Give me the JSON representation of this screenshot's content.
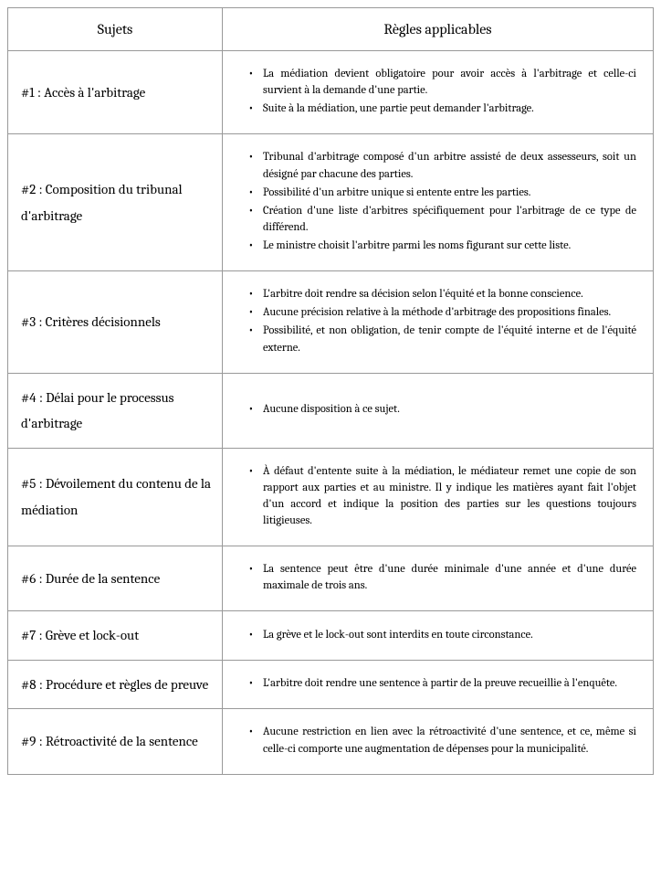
{
  "table": {
    "header": {
      "subject": "Sujets",
      "rules": "Règles applicables"
    },
    "rows": [
      {
        "subject": "#1 : Accès à l'arbitrage",
        "rules": [
          "La médiation devient obligatoire pour avoir accès à l'arbitrage et celle-ci survient à la demande d'une partie.",
          "Suite à la médiation, une partie peut demander l'arbitrage."
        ]
      },
      {
        "subject": "#2 : Composition du tribunal d'arbitrage",
        "rules": [
          "Tribunal d'arbitrage composé d'un arbitre assisté de deux assesseurs, soit un désigné par chacune des parties.",
          "Possibilité d'un arbitre unique si entente entre les parties.",
          "Création d'une liste d'arbitres spécifiquement pour l'arbitrage de ce type de différend.",
          "Le ministre choisit l'arbitre parmi les noms figurant sur cette liste."
        ]
      },
      {
        "subject": "#3 : Critères décisionnels",
        "rules": [
          "L'arbitre doit rendre sa décision selon l'équité et la bonne conscience.",
          "Aucune précision relative à la méthode d'arbitrage des propositions finales.",
          "Possibilité, et non obligation, de tenir compte de l'équité interne et de l'équité externe."
        ]
      },
      {
        "subject": "#4 : Délai pour le processus d'arbitrage",
        "rules": [
          "Aucune disposition à ce sujet."
        ]
      },
      {
        "subject": "#5 : Dévoilement du contenu de la médiation",
        "rules": [
          "À défaut d'entente suite à la médiation, le médiateur remet une copie de son rapport aux parties et au ministre. Il y indique les matières ayant fait l'objet d'un accord et indique la position des parties sur les questions toujours litigieuses."
        ]
      },
      {
        "subject": "#6 : Durée de la sentence",
        "rules": [
          "La sentence peut être d'une durée minimale d'une année et d'une durée maximale de trois ans."
        ]
      },
      {
        "subject": "#7 : Grève et lock-out",
        "rules": [
          "La grève et le lock-out sont interdits en toute circonstance."
        ]
      },
      {
        "subject": "#8 : Procédure et règles de preuve",
        "rules": [
          "L'arbitre doit rendre une sentence à partir de la preuve recueillie à l'enquête."
        ]
      },
      {
        "subject": "#9 : Rétroactivité de la sentence",
        "rules": [
          "Aucune restriction en lien avec la rétroactivité d'une sentence, et ce, même si celle-ci comporte une augmentation de dépenses pour la municipalité."
        ]
      }
    ]
  }
}
